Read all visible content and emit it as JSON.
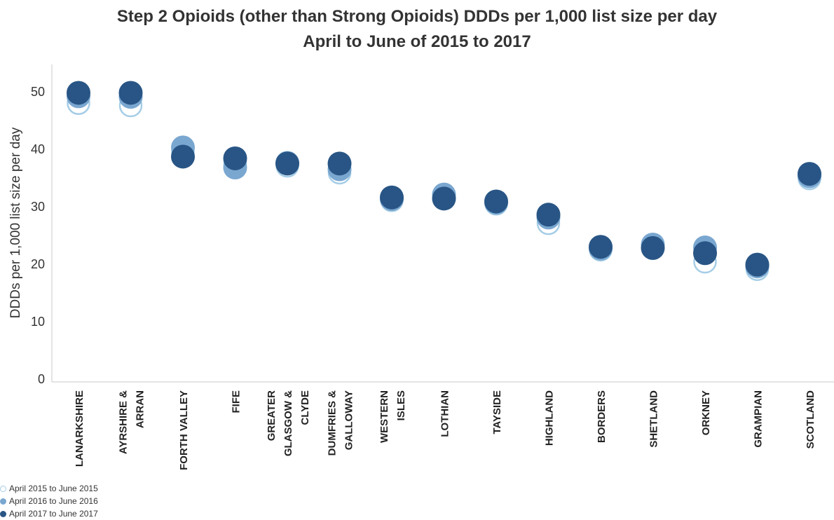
{
  "chart_data": {
    "type": "scatter",
    "title": "Step 2 Opioids (other than Strong Opioids) DDDs per 1,000 list size per day",
    "subtitle": "April to June of 2015 to 2017",
    "ylabel": "DDDs per 1,000 list size per day",
    "ylim": [
      0,
      55
    ],
    "yticks": [
      0,
      10,
      20,
      30,
      40,
      50
    ],
    "grid": false,
    "legend_position": "bottom-left",
    "categories": [
      [
        "LANARKSHIRE"
      ],
      [
        "AYRSHIRE &",
        "ARRAN"
      ],
      [
        "FORTH VALLEY"
      ],
      [
        "FIFE"
      ],
      [
        "GREATER",
        "GLASGOW &",
        "CLYDE"
      ],
      [
        "DUMFRIES &",
        "GALLOWAY"
      ],
      [
        "WESTERN",
        "ISLES"
      ],
      [
        "LOTHIAN"
      ],
      [
        "TAYSIDE"
      ],
      [
        "HIGHLAND"
      ],
      [
        "BORDERS"
      ],
      [
        "SHETLAND"
      ],
      [
        "ORKNEY"
      ],
      [
        "GRAMPIAN"
      ],
      [
        "SCOTLAND"
      ]
    ],
    "series": [
      {
        "name": "April 2015 to June 2015",
        "style": "hollow",
        "color": "#a6cde6",
        "values": [
          47.9,
          47.5,
          39.5,
          37.3,
          37.0,
          35.8,
          31.0,
          31.5,
          30.4,
          27.0,
          22.4,
          22.7,
          20.3,
          19.0,
          34.8
        ]
      },
      {
        "name": "April 2016 to June 2016",
        "style": "filled",
        "color": "#7aa7d0",
        "values": [
          49.1,
          49.0,
          40.2,
          36.7,
          37.5,
          36.4,
          31.2,
          32.0,
          30.6,
          28.0,
          22.6,
          23.3,
          22.8,
          19.5,
          35.2
        ]
      },
      {
        "name": "April 2017 to June 2017",
        "style": "filled",
        "color": "#285585",
        "values": [
          49.7,
          49.7,
          38.6,
          38.3,
          37.4,
          37.4,
          31.5,
          31.3,
          30.8,
          28.5,
          22.9,
          22.7,
          21.8,
          19.8,
          35.6
        ]
      }
    ]
  }
}
